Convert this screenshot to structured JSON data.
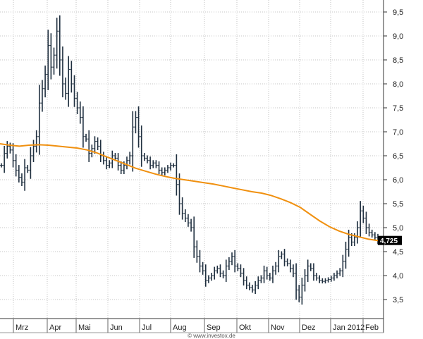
{
  "chart_data": {
    "type": "candlestick-ohlc",
    "title": "",
    "xlabel": "",
    "ylabel": "",
    "ylim": [
      3.0,
      9.7
    ],
    "y_ticks": [
      "9,5",
      "9,0",
      "8,5",
      "8,0",
      "7,5",
      "7,0",
      "6,5",
      "6,0",
      "5,5",
      "5,0",
      "4,5",
      "4,0",
      "3,5"
    ],
    "y_tick_values": [
      9.5,
      9.0,
      8.5,
      8.0,
      7.5,
      7.0,
      6.5,
      6.0,
      5.5,
      5.0,
      4.5,
      4.0,
      3.5
    ],
    "x_ticks": [
      "Mrz",
      "Apr",
      "Mai",
      "Jun",
      "Jul",
      "Aug",
      "Sep",
      "Okt",
      "Nov",
      "Dez",
      "Jan 2012",
      "Feb"
    ],
    "grid": true,
    "last_price_label": "4,725",
    "last_price": 4.725,
    "watermark": "© www.investox.de",
    "colors": {
      "price": "#1f2f3f",
      "moving_average": "#f0900f",
      "grid": "#c4c4c4",
      "tag": "#000000"
    },
    "price_series": {
      "name": "",
      "values": [
        6.3,
        6.55,
        6.7,
        6.62,
        6.4,
        6.2,
        6.05,
        5.95,
        6.25,
        6.2,
        6.5,
        6.7,
        6.9,
        7.6,
        7.9,
        8.2,
        8.8,
        8.35,
        8.6,
        9.1,
        8.5,
        8.0,
        7.8,
        8.3,
        8.0,
        7.7,
        7.5,
        7.3,
        6.9,
        6.85,
        6.55,
        6.65,
        6.8,
        6.7,
        6.5,
        6.4,
        6.3,
        6.35,
        6.5,
        6.45,
        6.3,
        6.2,
        6.3,
        6.4,
        6.5,
        7.1,
        7.3,
        6.9,
        6.5,
        6.45,
        6.4,
        6.3,
        6.35,
        6.3,
        6.2,
        6.15,
        6.2,
        6.25,
        6.3,
        6.3,
        5.9,
        5.5,
        5.3,
        5.2,
        5.1,
        5.0,
        4.6,
        4.4,
        4.2,
        4.1,
        3.9,
        3.95,
        4.0,
        4.1,
        4.15,
        4.05,
        4.0,
        4.2,
        4.3,
        4.4,
        4.2,
        4.15,
        4.05,
        3.9,
        3.8,
        3.75,
        3.7,
        3.8,
        3.9,
        3.95,
        4.1,
        4.0,
        3.95,
        4.1,
        4.2,
        4.4,
        4.45,
        4.3,
        4.25,
        4.15,
        4.05,
        3.7,
        3.55,
        3.8,
        4.0,
        4.2,
        4.15,
        4.0,
        3.95,
        3.9,
        3.88,
        3.9,
        3.92,
        3.95,
        4.0,
        4.05,
        4.1,
        4.3,
        4.55,
        4.8,
        4.7,
        4.8,
        5.0,
        5.35,
        5.2,
        5.0,
        4.9,
        4.85,
        4.8,
        4.725
      ]
    },
    "moving_average": {
      "name": "",
      "values": [
        6.75,
        6.72,
        6.7,
        6.72,
        6.73,
        6.72,
        6.7,
        6.68,
        6.66,
        6.62,
        6.56,
        6.48,
        6.4,
        6.32,
        6.24,
        6.18,
        6.12,
        6.07,
        6.03,
        6.0,
        5.97,
        5.94,
        5.91,
        5.87,
        5.83,
        5.79,
        5.75,
        5.72,
        5.67,
        5.6,
        5.52,
        5.42,
        5.28,
        5.14,
        5.02,
        4.93,
        4.86,
        4.81,
        4.76,
        4.73
      ]
    }
  }
}
